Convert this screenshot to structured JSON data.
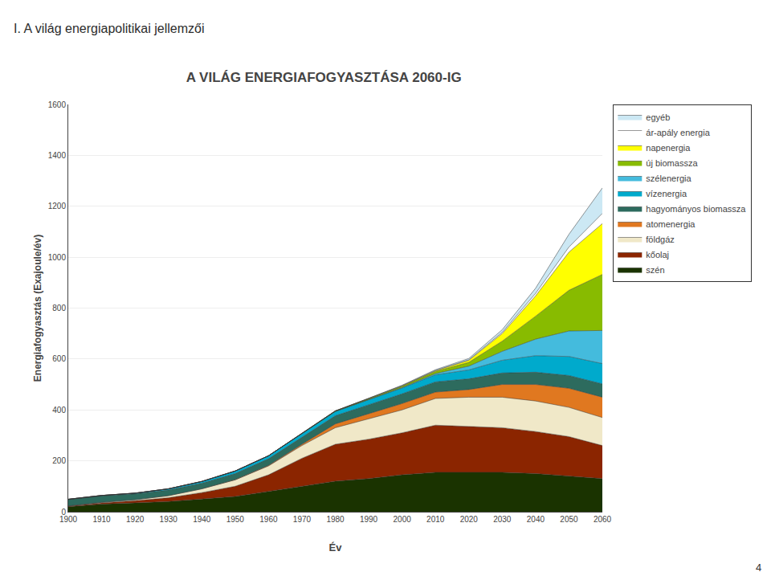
{
  "chart_data": {
    "type": "area",
    "stacked": true,
    "title": "A VILÁG ENERGIAFOGYASZTÁSA 2060-IG",
    "annotations": [
      "I. A világ energiapolitikai jellemzői",
      "4"
    ],
    "xlabel": "Év",
    "ylabel": "Energiafogyasztás (Exajoule/év)",
    "x": [
      1900,
      1910,
      1920,
      1930,
      1940,
      1950,
      1960,
      1970,
      1980,
      1990,
      2000,
      2010,
      2020,
      2030,
      2040,
      2050,
      2060
    ],
    "xlim": [
      1900,
      2060
    ],
    "xticks": [
      1900,
      1910,
      1920,
      1930,
      1940,
      1950,
      1960,
      1970,
      1980,
      1990,
      2000,
      2010,
      2020,
      2030,
      2040,
      2050,
      2060
    ],
    "ylim": [
      0,
      1600
    ],
    "yticks": [
      0,
      200,
      400,
      600,
      800,
      1000,
      1200,
      1400,
      1600
    ],
    "grid": true,
    "legend": "right",
    "series": [
      {
        "name": "szén",
        "color": "#1a3300",
        "values": [
          20,
          30,
          35,
          40,
          50,
          60,
          80,
          100,
          120,
          130,
          145,
          155,
          155,
          155,
          150,
          140,
          130
        ]
      },
      {
        "name": "kőolaj",
        "color": "#8b2500",
        "values": [
          2,
          5,
          8,
          15,
          25,
          40,
          65,
          110,
          145,
          155,
          165,
          185,
          180,
          175,
          165,
          155,
          130
        ]
      },
      {
        "name": "földgáz",
        "color": "#f0e8c8",
        "values": [
          1,
          2,
          4,
          8,
          15,
          25,
          35,
          50,
          65,
          80,
          90,
          105,
          115,
          120,
          120,
          115,
          110
        ]
      },
      {
        "name": "atomenergia",
        "color": "#e07820",
        "values": [
          0,
          0,
          0,
          0,
          0,
          1,
          2,
          5,
          15,
          20,
          25,
          25,
          30,
          50,
          65,
          75,
          80
        ]
      },
      {
        "name": "hagyományos biomassza",
        "color": "#2d6b5e",
        "values": [
          25,
          25,
          23,
          22,
          22,
          24,
          26,
          28,
          32,
          35,
          38,
          40,
          42,
          45,
          48,
          50,
          52
        ]
      },
      {
        "name": "vízenergia",
        "color": "#00aacc",
        "values": [
          1,
          2,
          3,
          5,
          7,
          10,
          12,
          14,
          17,
          20,
          23,
          28,
          35,
          50,
          65,
          75,
          80
        ]
      },
      {
        "name": "szélenergia",
        "color": "#44bbdd",
        "values": [
          0,
          0,
          0,
          0,
          0,
          0,
          0,
          0,
          0,
          1,
          2,
          5,
          15,
          35,
          65,
          100,
          130
        ]
      },
      {
        "name": "új biomassza",
        "color": "#88bb00",
        "values": [
          0,
          0,
          0,
          0,
          0,
          0,
          0,
          1,
          2,
          3,
          5,
          8,
          15,
          40,
          90,
          160,
          220
        ]
      },
      {
        "name": "napenergia",
        "color": "#ffff00",
        "values": [
          0,
          0,
          0,
          0,
          0,
          0,
          0,
          0,
          0,
          1,
          2,
          3,
          8,
          30,
          80,
          150,
          200
        ]
      },
      {
        "name": "ár-apály energia",
        "color": "#ffffff",
        "values": [
          0,
          0,
          0,
          0,
          0,
          0,
          0,
          0,
          0,
          0,
          0,
          1,
          2,
          5,
          10,
          20,
          40
        ]
      },
      {
        "name": "egyéb",
        "color": "#cce8f4",
        "values": [
          0,
          0,
          0,
          0,
          0,
          0,
          0,
          0,
          0,
          1,
          2,
          3,
          5,
          10,
          20,
          50,
          100
        ]
      }
    ]
  }
}
